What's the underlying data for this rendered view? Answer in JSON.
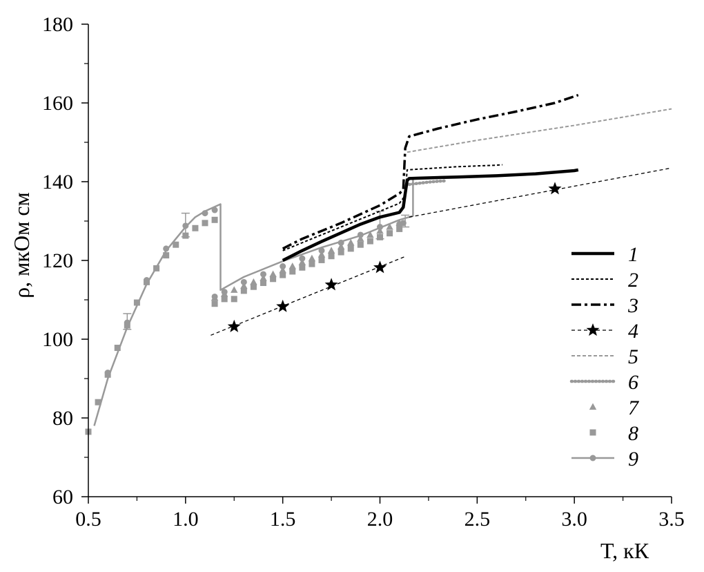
{
  "chart_data": {
    "type": "line",
    "xlabel": "T, кК",
    "ylabel": "ρ, мкОм см",
    "xlim": [
      0.5,
      3.5
    ],
    "ylim": [
      60,
      180
    ],
    "xticks": [
      "0.5",
      "1.0",
      "1.5",
      "2.0",
      "2.5",
      "3.0",
      "3.5"
    ],
    "yticks": [
      "60",
      "80",
      "100",
      "120",
      "140",
      "160",
      "180"
    ],
    "grid": false,
    "legend_position": "right",
    "colors": {
      "black": "#000000",
      "gray": "#999999"
    },
    "series": [
      {
        "name": "1",
        "style": "solid-thick",
        "color": "#000000",
        "x": [
          1.5,
          1.6,
          1.7,
          1.8,
          1.9,
          2.0,
          2.1,
          2.12,
          2.13,
          2.14,
          2.15,
          2.2,
          2.4,
          2.6,
          2.8,
          3.0,
          3.02
        ],
        "y": [
          120,
          122.5,
          124.8,
          127,
          129.2,
          131,
          132.2,
          133.5,
          137,
          140.3,
          140.8,
          140.9,
          141.2,
          141.5,
          142,
          142.8,
          143
        ]
      },
      {
        "name": "2",
        "style": "dotted",
        "color": "#000000",
        "x": [
          1.5,
          1.7,
          1.9,
          2.1,
          2.13,
          2.14,
          2.2,
          2.4,
          2.6,
          2.63
        ],
        "y": [
          122.5,
          126.5,
          130.5,
          134.5,
          136.5,
          143,
          143.2,
          143.8,
          144.2,
          144.3
        ]
      },
      {
        "name": "3",
        "style": "dash-dot",
        "color": "#000000",
        "x": [
          1.5,
          1.6,
          1.8,
          2.0,
          2.1,
          2.12,
          2.13,
          2.15,
          2.3,
          2.5,
          2.7,
          2.9,
          3.02
        ],
        "y": [
          123,
          125.5,
          129.5,
          134,
          137,
          138,
          148.5,
          151.5,
          153.5,
          155.8,
          157.8,
          160,
          162
        ]
      },
      {
        "name": "4",
        "style": "dashed-star",
        "color": "#000000",
        "line_segments": [
          {
            "x": [
              1.13,
              2.13
            ],
            "y": [
              101,
              121
            ]
          },
          {
            "x": [
              2.15,
              3.5
            ],
            "y": [
              131,
              143.5
            ]
          }
        ],
        "markers": {
          "x": [
            1.25,
            1.5,
            1.75,
            2.0,
            2.9
          ],
          "y": [
            103.2,
            108.3,
            113.8,
            118.2,
            138.2
          ]
        }
      },
      {
        "name": "5",
        "style": "dashed-gray",
        "color": "#999999",
        "x": [
          2.14,
          2.5,
          3.0,
          3.5
        ],
        "y": [
          147.5,
          150.5,
          154.3,
          158.5
        ]
      },
      {
        "name": "6",
        "style": "dotted-gray",
        "color": "#999999",
        "x": [
          2.15,
          2.2,
          2.25,
          2.3,
          2.33
        ],
        "y": [
          139.3,
          139.6,
          139.9,
          140.1,
          140.2
        ]
      },
      {
        "name": "7",
        "style": "triangle-markers",
        "color": "#999999",
        "x": [
          1.15,
          1.2,
          1.25,
          1.3,
          1.35,
          1.4,
          1.45,
          1.5,
          1.55,
          1.6,
          1.65,
          1.7,
          1.75,
          1.8,
          1.85,
          1.9,
          1.95,
          2.0,
          2.05,
          2.1
        ],
        "y": [
          110.5,
          111.5,
          112.5,
          113.5,
          114.5,
          115.5,
          116.5,
          117.5,
          118.5,
          119.5,
          120.5,
          121.5,
          122.5,
          123.5,
          124.5,
          125.5,
          126.5,
          127.5,
          128.5,
          129.5
        ]
      },
      {
        "name": "8",
        "style": "square-markers",
        "color": "#999999",
        "x": [
          0.5,
          0.55,
          0.6,
          0.65,
          0.7,
          0.75,
          0.8,
          0.85,
          0.9,
          0.95,
          1.0,
          1.05,
          1.1,
          1.15,
          1.15,
          1.2,
          1.25,
          1.3,
          1.35,
          1.4,
          1.45,
          1.5,
          1.55,
          1.6,
          1.65,
          1.7,
          1.75,
          1.8,
          1.85,
          1.9,
          1.95,
          2.0,
          2.05,
          2.1
        ],
        "y": [
          76.5,
          84,
          91,
          97.8,
          103.5,
          109.3,
          114.5,
          118,
          121.3,
          124,
          126.3,
          128.2,
          129.5,
          130.3,
          109,
          110.2,
          110.2,
          112.3,
          113.3,
          114.3,
          115.3,
          116.3,
          117.2,
          118.2,
          119.1,
          120.1,
          121.1,
          122.1,
          123,
          124,
          124.9,
          125.9,
          126.9,
          128
        ]
      },
      {
        "name": "9",
        "style": "solid-gray-circles",
        "color": "#999999",
        "line_segments": [
          {
            "x": [
              0.53,
              0.6,
              0.7,
              0.8,
              0.9,
              1.0,
              1.05,
              1.1,
              1.18,
              1.18,
              1.3,
              1.5,
              1.7,
              1.9,
              2.1,
              2.17,
              2.17
            ],
            "y": [
              78,
              90,
              103,
              114,
              122.5,
              128.5,
              131,
              132.5,
              134.3,
              112.5,
              115.8,
              119.8,
              123.3,
              126.3,
              130.3,
              131.3,
              140.5
            ]
          }
        ],
        "markers": {
          "x": [
            0.6,
            0.7,
            0.8,
            0.9,
            1.0,
            1.1,
            1.15,
            1.15,
            1.2,
            1.3,
            1.4,
            1.5,
            1.6,
            1.7,
            1.8,
            1.9,
            2.0,
            2.1,
            2.12
          ],
          "y": [
            91.5,
            104.2,
            115,
            123,
            128.8,
            132,
            132.8,
            110.8,
            112,
            114.5,
            116.5,
            118.5,
            120.5,
            122.5,
            124.5,
            126.5,
            128.5,
            129.2,
            129.5
          ]
        },
        "error_bars": [
          {
            "x": 0.7,
            "low": 102.5,
            "high": 106.5
          },
          {
            "x": 1.0,
            "low": 126,
            "high": 132
          },
          {
            "x": 2.0,
            "low": 125.5,
            "high": 132.5
          },
          {
            "x": 2.13,
            "low": 128.5,
            "high": 131.5
          }
        ]
      }
    ]
  }
}
